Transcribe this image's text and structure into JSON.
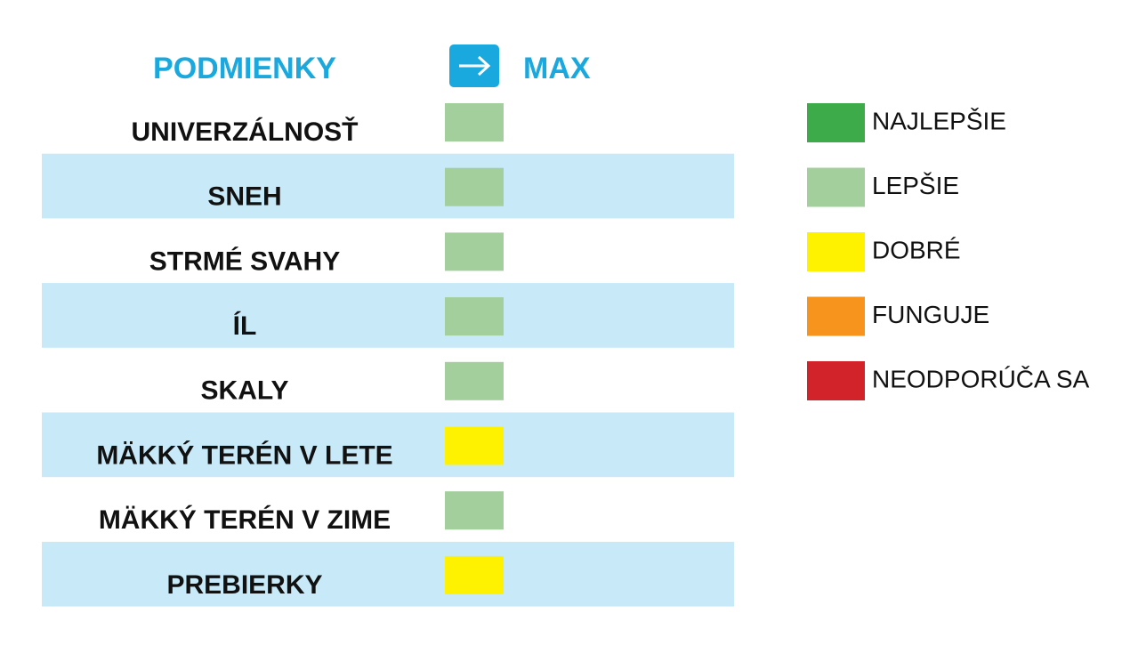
{
  "header": {
    "title": "PODMIENKY",
    "column": "MAX"
  },
  "rows": [
    {
      "label": "UNIVERZÁLNOSŤ",
      "color": "#a3cf9c"
    },
    {
      "label": "SNEH",
      "color": "#a3cf9c"
    },
    {
      "label": "STRMÉ SVAHY",
      "color": "#a3cf9c"
    },
    {
      "label": "ÍL",
      "color": "#a3cf9c"
    },
    {
      "label": "SKALY",
      "color": "#a3cf9c"
    },
    {
      "label": "MÄKKÝ TERÉN V LETE",
      "color": "#fff200"
    },
    {
      "label": "MÄKKÝ TERÉN V ZIME",
      "color": "#a3cf9c"
    },
    {
      "label": "PREBIERKY",
      "color": "#fff200"
    }
  ],
  "legend": [
    {
      "label": "NAJLEPŠIE",
      "color": "#3dab4a"
    },
    {
      "label": "LEPŠIE",
      "color": "#a3cf9c"
    },
    {
      "label": "DOBRÉ",
      "color": "#fff200"
    },
    {
      "label": "FUNGUJE",
      "color": "#f7941e"
    },
    {
      "label": "NEODPORÚČA SA",
      "color": "#d2232a"
    }
  ]
}
